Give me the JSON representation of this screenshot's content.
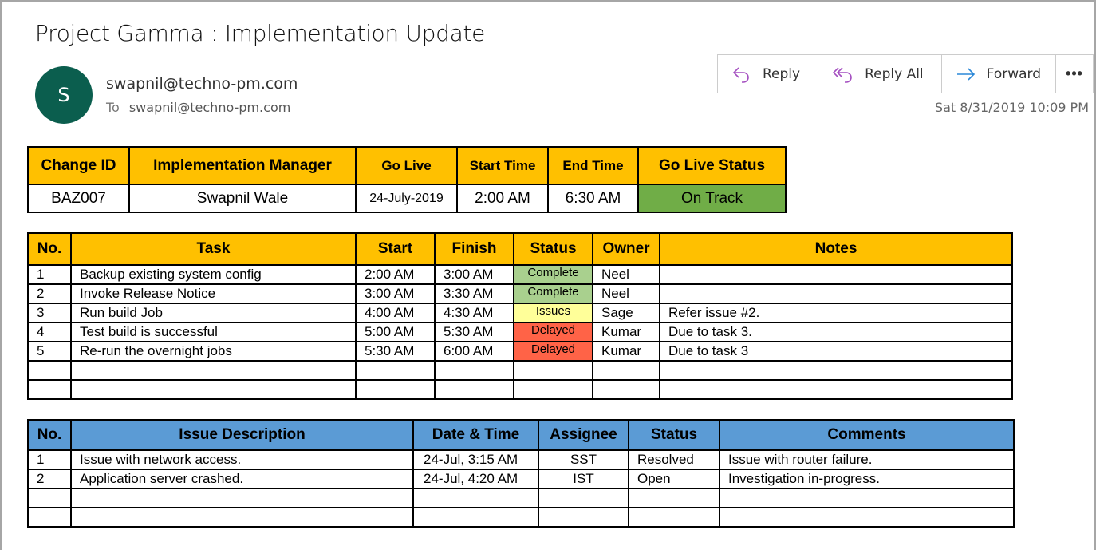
{
  "email": {
    "subject": "Project Gamma : Implementation Update",
    "avatar_initial": "S",
    "from": "swapnil@techno-pm.com",
    "to_label": "To",
    "to": "swapnil@techno-pm.com",
    "date": "Sat 8/31/2019 10:09 PM",
    "actions": {
      "reply": "Reply",
      "reply_all": "Reply All",
      "forward": "Forward",
      "more": "•••"
    }
  },
  "colors": {
    "header_orange": "#ffc000",
    "header_blue": "#5b9bd5",
    "on_track": "#70ad47",
    "Complete": "#a9d08e",
    "Issues": "#ffff99",
    "Delayed": "#ff6347",
    "avatar": "#0b5e4e",
    "reply_icon": "#a44fc0",
    "forward_icon": "#2b88d8"
  },
  "summary": {
    "headers": [
      "Change ID",
      "Implementation Manager",
      "Go Live",
      "Start Time",
      "End Time",
      "Go Live Status"
    ],
    "row": [
      "BAZ007",
      "Swapnil Wale",
      "24-July-2019",
      "2:00 AM",
      "6:30 AM",
      "On Track"
    ]
  },
  "tasks": {
    "headers": [
      "No.",
      "Task",
      "Start",
      "Finish",
      "Status",
      "Owner",
      "Notes"
    ],
    "rows": [
      [
        "1",
        "Backup existing system config",
        "2:00 AM",
        "3:00 AM",
        "Complete",
        "Neel",
        ""
      ],
      [
        "2",
        "Invoke Release Notice",
        "3:00 AM",
        "3:30 AM",
        "Complete",
        "Neel",
        ""
      ],
      [
        "3",
        "Run build Job",
        "4:00 AM",
        "4:30 AM",
        "Issues",
        "Sage",
        "Refer issue #2."
      ],
      [
        "4",
        "Test build is successful",
        "5:00 AM",
        "5:30 AM",
        "Delayed",
        "Kumar",
        "Due to task 3."
      ],
      [
        "5",
        "Re-run the overnight jobs",
        "5:30 AM",
        "6:00 AM",
        "Delayed",
        "Kumar",
        "Due to task 3"
      ],
      [
        "",
        "",
        "",
        "",
        "",
        "",
        ""
      ],
      [
        "",
        "",
        "",
        "",
        "",
        "",
        ""
      ]
    ]
  },
  "issues": {
    "headers": [
      "No.",
      "Issue Description",
      "Date & Time",
      "Assignee",
      "Status",
      "Comments"
    ],
    "rows": [
      [
        "1",
        "Issue with network access.",
        "24-Jul, 3:15 AM",
        "SST",
        "Resolved",
        "Issue with router failure."
      ],
      [
        "2",
        "Application server crashed.",
        "24-Jul, 4:20 AM",
        "IST",
        "Open",
        "Investigation in-progress."
      ],
      [
        "",
        "",
        "",
        "",
        "",
        ""
      ],
      [
        "",
        "",
        "",
        "",
        "",
        ""
      ]
    ]
  }
}
